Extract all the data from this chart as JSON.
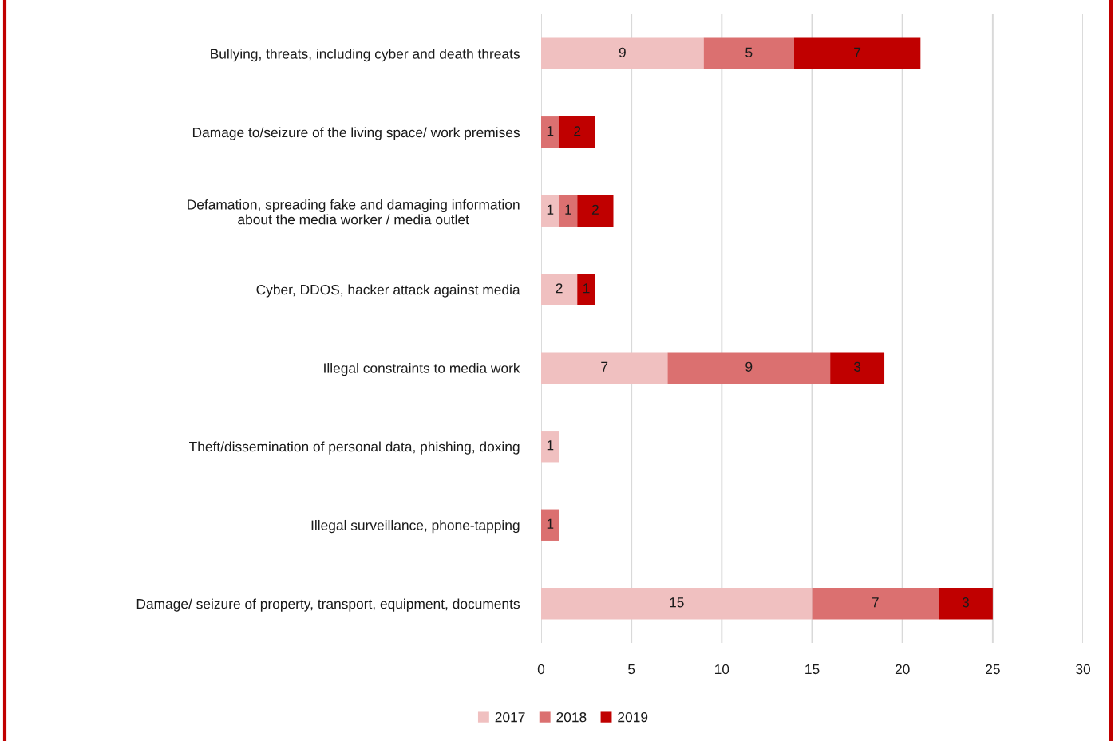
{
  "chart_data": {
    "type": "bar",
    "orientation": "horizontal",
    "stacked": true,
    "categories": [
      "Bullying, threats, including cyber and death threats",
      "Damage to/seizure of the living space/ work premises",
      "Defamation, spreading fake and damaging information\nabout the media worker / media outlet",
      "Cyber, DDOS, hacker attack against media",
      "Illegal constraints to media work",
      "Theft/dissemination of personal data, phishing, doxing",
      "Illegal surveillance, phone-tapping",
      "Damage/ seizure of property, transport, equipment, documents"
    ],
    "series": [
      {
        "name": "2017",
        "color": "#f0c0c0",
        "values": [
          9,
          null,
          1,
          2,
          7,
          1,
          null,
          15
        ]
      },
      {
        "name": "2018",
        "color": "#db7070",
        "values": [
          5,
          1,
          1,
          null,
          9,
          null,
          1,
          7
        ]
      },
      {
        "name": "2019",
        "color": "#c00000",
        "values": [
          7,
          2,
          2,
          1,
          3,
          null,
          null,
          3
        ]
      }
    ],
    "xlim": [
      0,
      30
    ],
    "xticks": [
      0,
      5,
      10,
      15,
      20,
      25,
      30
    ],
    "grid": "x",
    "legend": "bottom",
    "data_labels": true
  }
}
